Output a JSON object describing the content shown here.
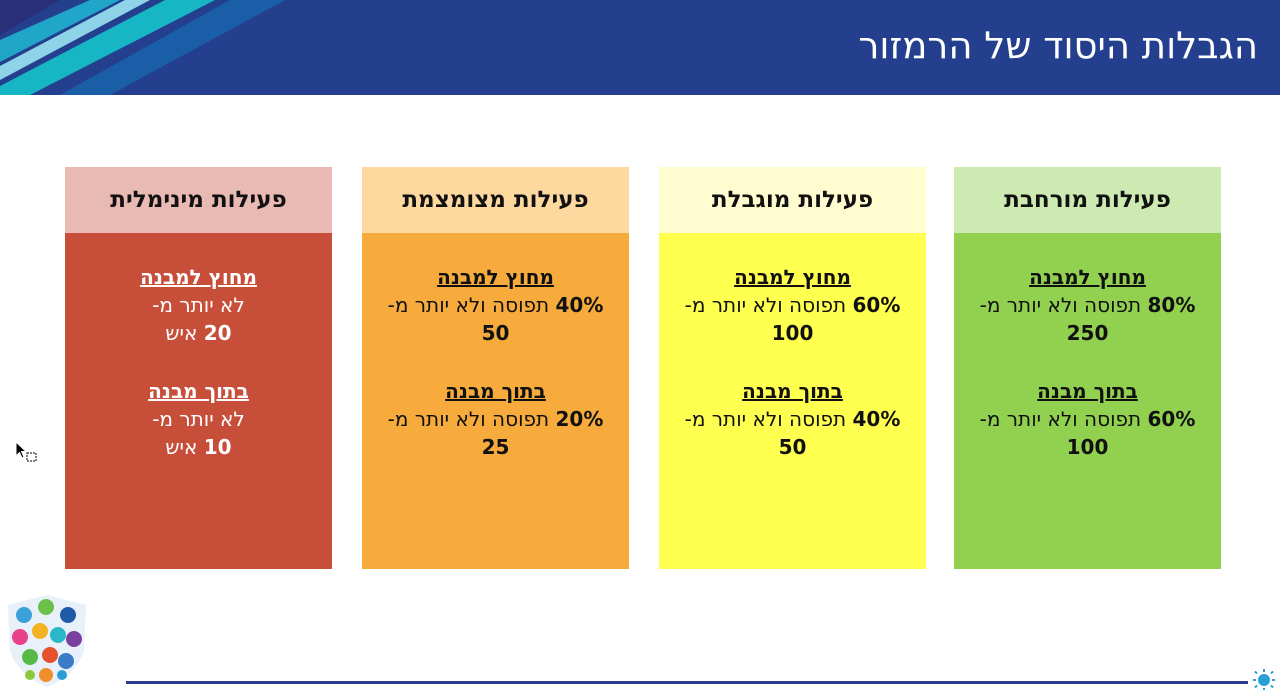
{
  "slide": {
    "title": "הגבלות היסוד של הרמזור"
  },
  "colors": {
    "header_bg": "#233f8e",
    "green_head": "#cdeab2",
    "green_body": "#92d050",
    "yellow_head": "#fffdd0",
    "yellow_body": "#ffff4f",
    "orange_head": "#fdd9a0",
    "orange_body": "#f6ab3c",
    "red_head": "#e9b9b4",
    "red_body": "#c74f3a"
  },
  "columns": [
    {
      "heading": "פעילות מורחבת",
      "outside": {
        "label": "מחוץ למבנה",
        "pct": "80%",
        "text": "תפוסה ולא יותר מ-",
        "max": "250"
      },
      "inside": {
        "label": "בתוך מבנה",
        "pct": "60%",
        "text": "תפוסה ולא יותר מ-",
        "max": "100"
      }
    },
    {
      "heading": "פעילות מוגבלת",
      "outside": {
        "label": "מחוץ למבנה",
        "pct": "60%",
        "text": "תפוסה ולא יותר מ-",
        "max": "100"
      },
      "inside": {
        "label": "בתוך מבנה",
        "pct": "40%",
        "text": "תפוסה ולא יותר מ-",
        "max": "50"
      }
    },
    {
      "heading": "פעילות מצומצמת",
      "outside": {
        "label": "מחוץ למבנה",
        "pct": "40%",
        "text": "תפוסה ולא יותר מ-",
        "max": "50"
      },
      "inside": {
        "label": "בתוך מבנה",
        "pct": "20%",
        "text": "תפוסה ולא יותר מ-",
        "max": "25"
      }
    },
    {
      "heading": "פעילות מינימלית",
      "outside": {
        "label": "מחוץ למבנה",
        "text": "לא יותר מ-",
        "max": "20",
        "unit": "איש"
      },
      "inside": {
        "label": "בתוך מבנה",
        "text": "לא יותר מ-",
        "max": "10",
        "unit": "איש"
      }
    }
  ]
}
